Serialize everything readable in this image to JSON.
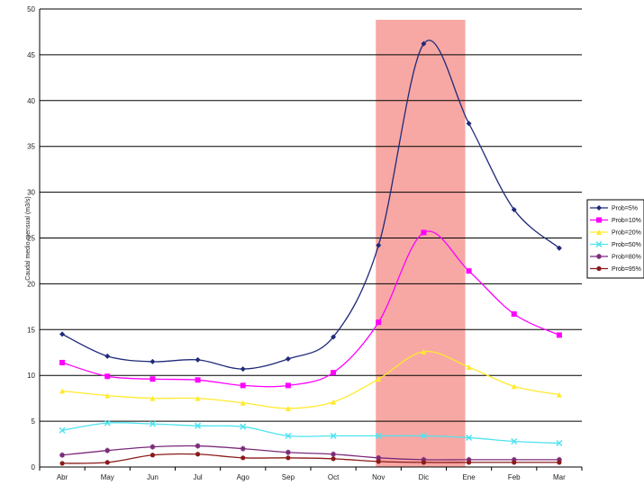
{
  "chart_data": {
    "type": "line",
    "title": "",
    "xlabel": "",
    "ylabel": "Caudal medio mensual (m3/s)",
    "ylim": [
      0,
      50
    ],
    "yticks": [
      0,
      5,
      10,
      15,
      20,
      25,
      30,
      35,
      40,
      45,
      50
    ],
    "grid": true,
    "legend_position": "right",
    "categories": [
      "Abr",
      "May",
      "Jun",
      "Jul",
      "Ago",
      "Sep",
      "Oct",
      "Nov",
      "Dic",
      "Ene",
      "Feb",
      "Mar"
    ],
    "highlight": {
      "from": "Nov",
      "to": "Ene",
      "color": "#f7a8a4"
    },
    "series": [
      {
        "name": "Prob=5%",
        "color": "#1f2a7a",
        "marker": "diamond",
        "values": [
          14.5,
          12.1,
          11.5,
          11.7,
          10.7,
          11.8,
          14.2,
          24.2,
          46.2,
          37.5,
          28.1,
          23.9
        ]
      },
      {
        "name": "Prob=10%",
        "color": "#ff00ff",
        "marker": "square",
        "values": [
          11.4,
          9.9,
          9.6,
          9.5,
          8.9,
          8.9,
          10.3,
          15.8,
          25.6,
          21.4,
          16.7,
          14.4
        ]
      },
      {
        "name": "Prob=20%",
        "color": "#ffea2e",
        "marker": "triangle",
        "values": [
          8.3,
          7.8,
          7.5,
          7.5,
          7.0,
          6.4,
          7.1,
          9.6,
          12.6,
          10.9,
          8.8,
          7.9
        ]
      },
      {
        "name": "Prob=50%",
        "color": "#4fe3f0",
        "marker": "x",
        "values": [
          4.0,
          4.8,
          4.7,
          4.5,
          4.4,
          3.4,
          3.4,
          3.4,
          3.4,
          3.2,
          2.8,
          2.6
        ]
      },
      {
        "name": "Prob=80%",
        "color": "#7b2a7a",
        "marker": "star",
        "values": [
          1.3,
          1.8,
          2.2,
          2.3,
          2.0,
          1.6,
          1.4,
          1.0,
          0.8,
          0.8,
          0.8,
          0.8
        ]
      },
      {
        "name": "Prob=95%",
        "color": "#8b1a1a",
        "marker": "circle",
        "values": [
          0.4,
          0.5,
          1.3,
          1.4,
          1.0,
          1.0,
          0.9,
          0.6,
          0.5,
          0.5,
          0.5,
          0.5
        ]
      }
    ]
  }
}
